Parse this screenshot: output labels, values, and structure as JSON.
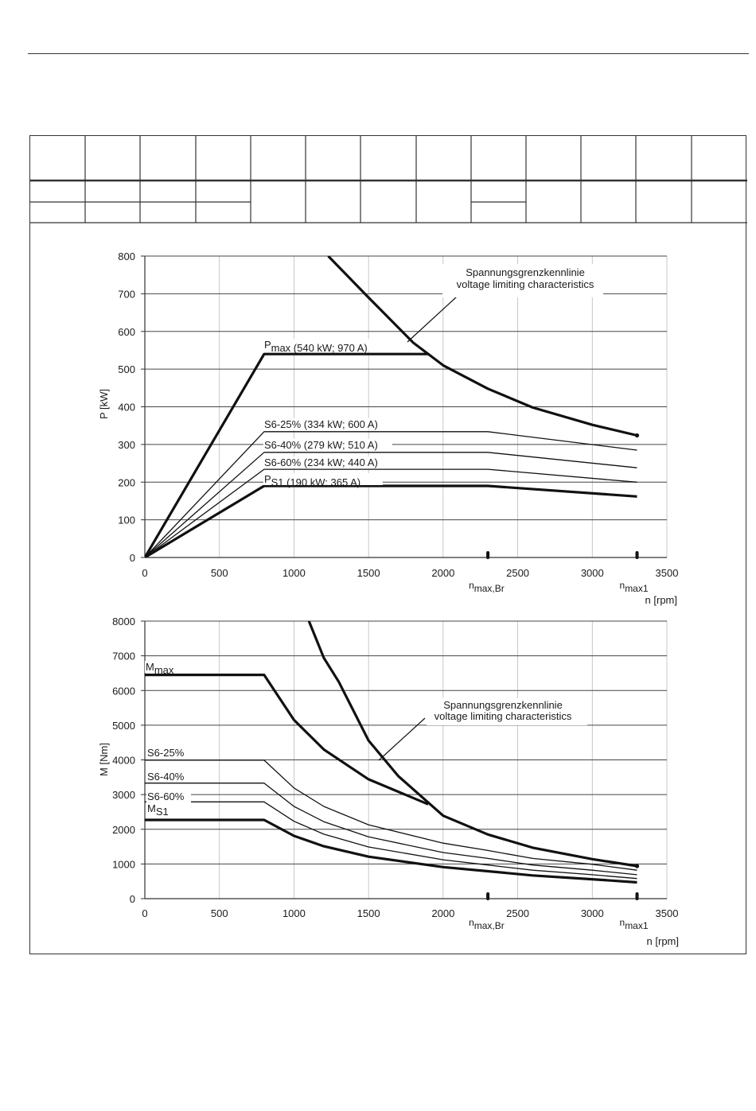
{
  "chart_data": [
    {
      "type": "line",
      "title": "",
      "xlabel": "n [rpm]",
      "ylabel": "P [kW]",
      "xlim": [
        0,
        3500
      ],
      "ylim": [
        0,
        800
      ],
      "xticks": [
        "0",
        "500",
        "1000",
        "1500",
        "2000",
        "2500",
        "3000",
        "3500"
      ],
      "yticks": [
        "0",
        "100",
        "200",
        "300",
        "400",
        "500",
        "600",
        "700",
        "800"
      ],
      "grid": true,
      "series": [
        {
          "name": "Pmax (540 kW; 970 A)",
          "label_main": "P",
          "label_sub": "max (540 kW; 970 A)",
          "bold": true,
          "x": [
            0,
            800,
            1900
          ],
          "y": [
            0,
            540,
            540
          ]
        },
        {
          "name": "S6-25% (334 kW; 600 A)",
          "bold": false,
          "x": [
            0,
            800,
            2300,
            3300
          ],
          "y": [
            0,
            334,
            334,
            285
          ]
        },
        {
          "name": "S6-40% (279 kW; 510 A)",
          "bold": false,
          "x": [
            0,
            800,
            2300,
            3300
          ],
          "y": [
            0,
            279,
            279,
            238
          ]
        },
        {
          "name": "S6-60% (234 kW; 440 A)",
          "bold": false,
          "x": [
            0,
            800,
            2300,
            3300
          ],
          "y": [
            0,
            234,
            234,
            200
          ]
        },
        {
          "name": "PS1 (190 kW; 365 A)",
          "label_main": "P",
          "label_sub": "S1 (190 kW; 365 A)",
          "bold": true,
          "x": [
            0,
            800,
            2300,
            3300
          ],
          "y": [
            0,
            190,
            190,
            162
          ]
        },
        {
          "name": "voltage limiting characteristics",
          "bold": true,
          "dot_end": true,
          "x": [
            1230,
            1500,
            1800,
            2000,
            2300,
            2600,
            3000,
            3300
          ],
          "y": [
            800,
            690,
            570,
            510,
            448,
            398,
            352,
            324
          ]
        }
      ],
      "annotation": {
        "line1": "Spannungsgrenzkennlinie",
        "line2": "voltage limiting characteristics"
      },
      "markers": [
        {
          "label_main": "n",
          "label_sub": "max,Br",
          "x": 2300
        },
        {
          "label_main": "n",
          "label_sub": "max1",
          "x": 3300
        }
      ]
    },
    {
      "type": "line",
      "title": "",
      "xlabel": "n [rpm]",
      "ylabel": "M [Nm]",
      "xlim": [
        0,
        3500
      ],
      "ylim": [
        0,
        8000
      ],
      "xticks": [
        "0",
        "500",
        "1000",
        "1500",
        "2000",
        "2500",
        "3000",
        "3500"
      ],
      "yticks": [
        "0",
        "1000",
        "2000",
        "3000",
        "4000",
        "5000",
        "6000",
        "7000",
        "8000"
      ],
      "grid": true,
      "series": [
        {
          "name": "Mmax",
          "label_main": "M",
          "label_sub": "max",
          "bold": true,
          "x": [
            0,
            800,
            1000,
            1200,
            1500,
            1900
          ],
          "y": [
            6450,
            6450,
            5150,
            4300,
            3440,
            2720
          ]
        },
        {
          "name": "S6-25%",
          "bold": false,
          "x": [
            0,
            800,
            1000,
            1200,
            1500,
            2000,
            2300,
            2600,
            3000,
            3300
          ],
          "y": [
            3990,
            3990,
            3190,
            2660,
            2130,
            1600,
            1390,
            1160,
            990,
            820
          ]
        },
        {
          "name": "S6-40%",
          "bold": false,
          "x": [
            0,
            800,
            1000,
            1200,
            1500,
            2000,
            2300,
            2600,
            3000,
            3300
          ],
          "y": [
            3330,
            3330,
            2660,
            2220,
            1780,
            1330,
            1160,
            970,
            820,
            690
          ]
        },
        {
          "name": "S6-60%",
          "bold": false,
          "x": [
            0,
            800,
            1000,
            1200,
            1500,
            2000,
            2300,
            2600,
            3000,
            3300
          ],
          "y": [
            2790,
            2790,
            2230,
            1860,
            1490,
            1120,
            970,
            820,
            690,
            580
          ]
        },
        {
          "name": "MS1",
          "label_main": "M",
          "label_sub": "S1",
          "bold": true,
          "x": [
            0,
            800,
            1000,
            1200,
            1500,
            2000,
            2300,
            2600,
            3000,
            3300
          ],
          "y": [
            2270,
            2270,
            1810,
            1510,
            1210,
            910,
            790,
            670,
            560,
            470
          ]
        },
        {
          "name": "voltage limiting characteristics",
          "bold": true,
          "dot_end": true,
          "x": [
            1100,
            1200,
            1300,
            1500,
            1700,
            2000,
            2300,
            2600,
            3000,
            3300
          ],
          "y": [
            8000,
            6940,
            6250,
            4560,
            3530,
            2390,
            1850,
            1470,
            1140,
            940
          ]
        }
      ],
      "annotation": {
        "line1": "Spannungsgrenzkennlinie",
        "line2": "voltage limiting characteristics"
      },
      "markers": [
        {
          "label_main": "n",
          "label_sub": "max,Br",
          "x": 2300
        },
        {
          "label_main": "n",
          "label_sub": "max1",
          "x": 3300
        }
      ]
    }
  ]
}
